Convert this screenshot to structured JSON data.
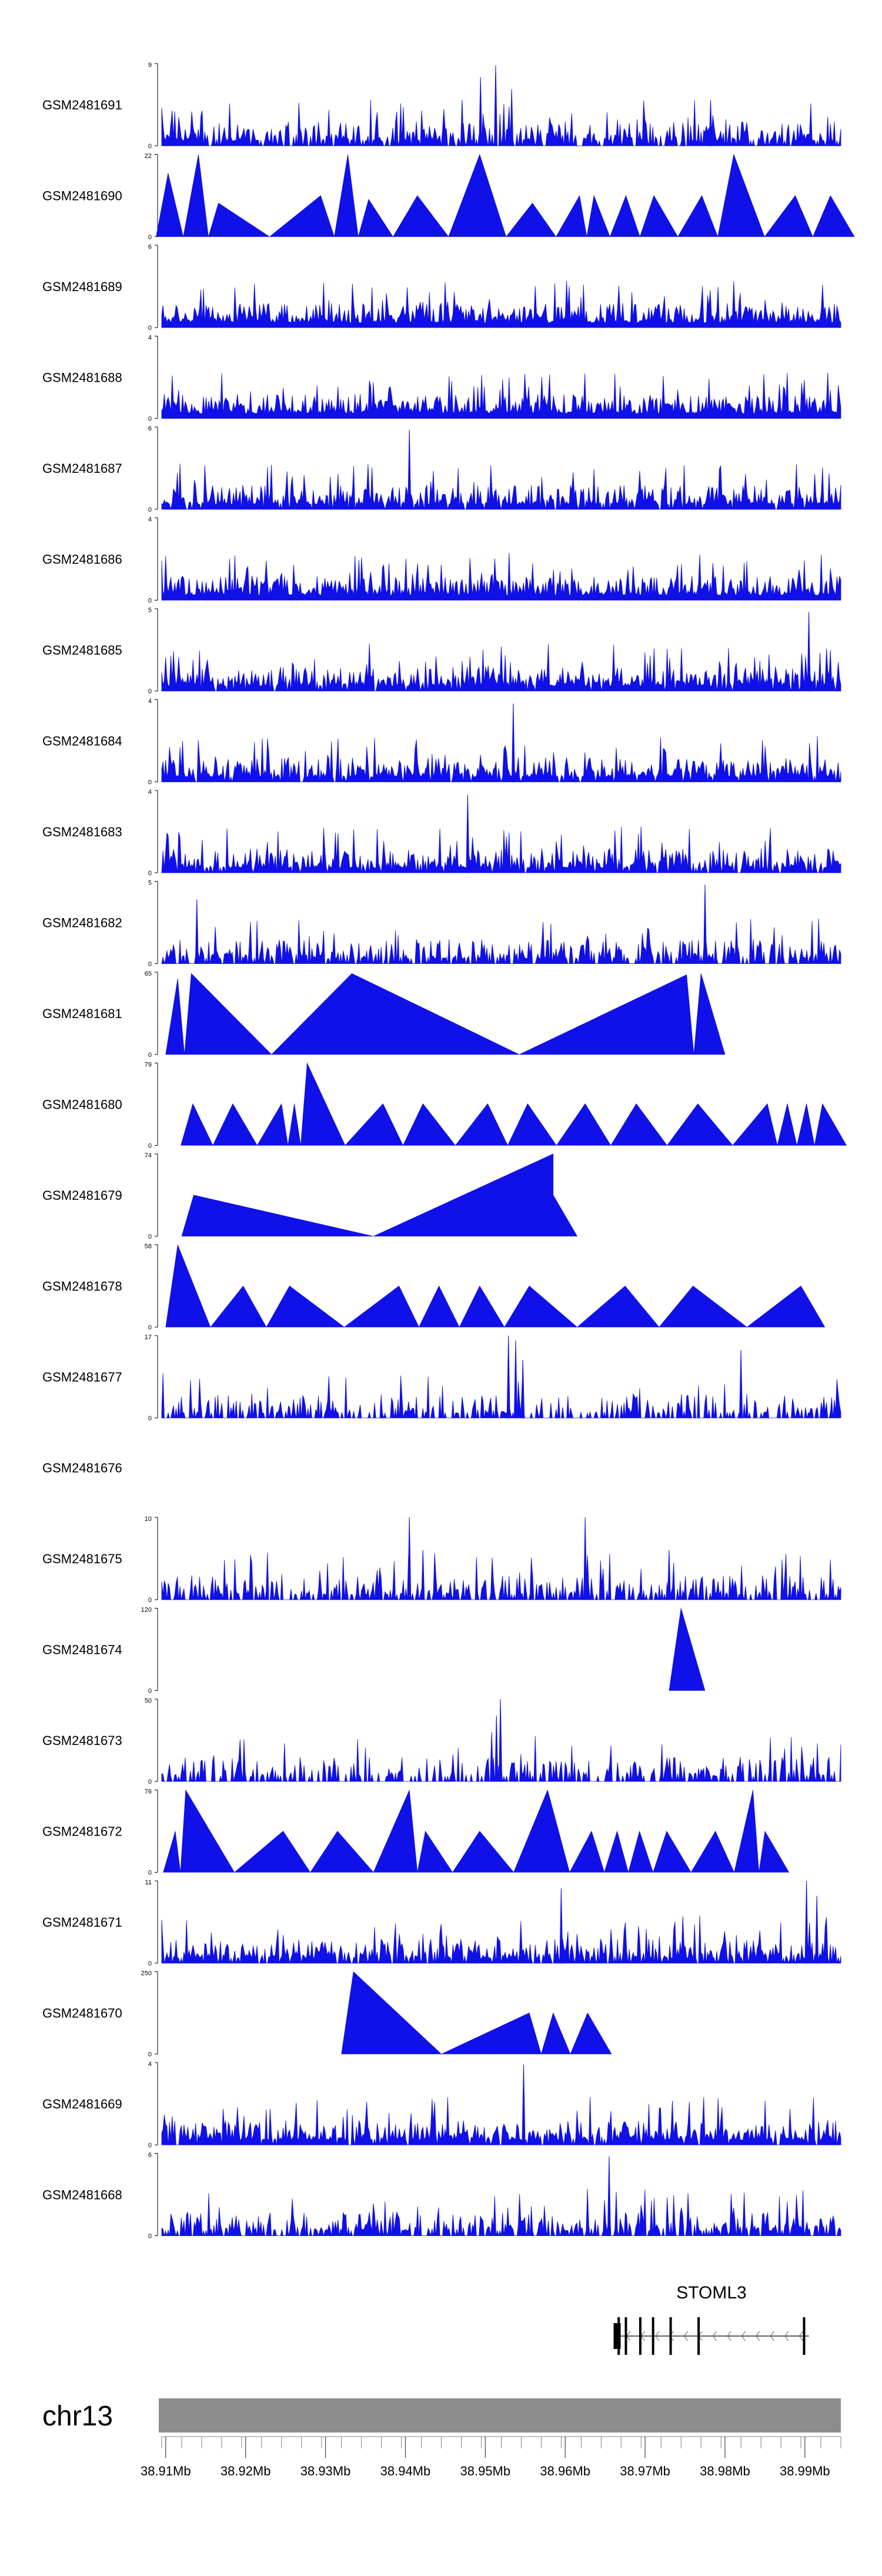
{
  "chart_data": {
    "type": "area",
    "title": "",
    "chromosome": "chr13",
    "x_range_mb": [
      38.9095,
      38.9945
    ],
    "x_ticks": [
      "38.91Mb",
      "38.92Mb",
      "38.93Mb",
      "38.94Mb",
      "38.95Mb",
      "38.96Mb",
      "38.97Mb",
      "38.98Mb",
      "38.99Mb"
    ],
    "x_tick_values": [
      38.91,
      38.92,
      38.93,
      38.94,
      38.95,
      38.96,
      38.97,
      38.98,
      38.99
    ],
    "gene": {
      "name": "STOML3",
      "strand": "-",
      "start_mb": 38.9665,
      "end_mb": 38.9905,
      "exons_mb": [
        38.9667,
        38.9676,
        38.9694,
        38.971,
        38.9732,
        38.9767,
        38.9899
      ]
    },
    "tracks": [
      {
        "sample": "GSM2481691",
        "ymax": 9,
        "ymin": 0,
        "style": "noise",
        "density": 0.8,
        "peaks": [
          [
            38.9494,
            7.5
          ],
          [
            38.9513,
            8.8
          ],
          [
            38.9533,
            6.2
          ],
          [
            38.9471,
            5.0
          ],
          [
            38.9782,
            5.0
          ]
        ]
      },
      {
        "sample": "GSM2481690",
        "ymax": 22,
        "ymin": 0,
        "style": "triangles",
        "peaks": [
          [
            38.9103,
            17
          ],
          [
            38.9141,
            22
          ],
          [
            38.9166,
            9
          ],
          [
            38.9294,
            11
          ],
          [
            38.9328,
            22
          ],
          [
            38.9354,
            10
          ],
          [
            38.9415,
            11
          ],
          [
            38.9493,
            22
          ],
          [
            38.9559,
            9
          ],
          [
            38.9618,
            11
          ],
          [
            38.9636,
            11
          ],
          [
            38.9676,
            11
          ],
          [
            38.9711,
            11
          ],
          [
            38.9771,
            11
          ],
          [
            38.9811,
            22
          ],
          [
            38.9888,
            11
          ],
          [
            38.9932,
            11
          ]
        ]
      },
      {
        "sample": "GSM2481689",
        "ymax": 6,
        "ymin": 0,
        "style": "noise",
        "density": 1.0,
        "peaks": []
      },
      {
        "sample": "GSM2481688",
        "ymax": 4,
        "ymin": 0,
        "style": "noise",
        "density": 1.0,
        "peaks": []
      },
      {
        "sample": "GSM2481687",
        "ymax": 6,
        "ymin": 0,
        "style": "noise",
        "density": 0.9,
        "peaks": [
          [
            38.9405,
            5.8
          ]
        ]
      },
      {
        "sample": "GSM2481686",
        "ymax": 4,
        "ymin": 0,
        "style": "noise",
        "density": 1.0,
        "peaks": []
      },
      {
        "sample": "GSM2481685",
        "ymax": 5,
        "ymin": 0,
        "style": "noise",
        "density": 0.9,
        "peaks": [
          [
            38.9905,
            4.8
          ]
        ]
      },
      {
        "sample": "GSM2481684",
        "ymax": 4,
        "ymin": 0,
        "style": "noise",
        "density": 0.9,
        "peaks": [
          [
            38.9535,
            3.8
          ]
        ]
      },
      {
        "sample": "GSM2481683",
        "ymax": 4,
        "ymin": 0,
        "style": "noise",
        "density": 0.9,
        "peaks": [
          [
            38.9478,
            3.8
          ]
        ]
      },
      {
        "sample": "GSM2481682",
        "ymax": 5,
        "ymin": 0,
        "style": "noise",
        "density": 0.7,
        "peaks": [
          [
            38.9775,
            4.8
          ],
          [
            38.9139,
            3.9
          ]
        ]
      },
      {
        "sample": "GSM2481681",
        "ymax": 65,
        "ymin": 0,
        "style": "triangles",
        "peaks": [
          [
            38.9115,
            60
          ],
          [
            38.9132,
            64
          ],
          [
            38.9333,
            64
          ],
          [
            38.9752,
            63
          ],
          [
            38.977,
            64
          ]
        ]
      },
      {
        "sample": "GSM2481680",
        "ymax": 79,
        "ymin": 0,
        "style": "triangles",
        "peaks": [
          [
            38.9134,
            40
          ],
          [
            38.9184,
            40
          ],
          [
            38.9245,
            40
          ],
          [
            38.9261,
            40
          ],
          [
            38.9277,
            79
          ],
          [
            38.9372,
            40
          ],
          [
            38.9422,
            40
          ],
          [
            38.9503,
            40
          ],
          [
            38.9553,
            40
          ],
          [
            38.9625,
            40
          ],
          [
            38.9689,
            40
          ],
          [
            38.9766,
            40
          ],
          [
            38.9853,
            40
          ],
          [
            38.9878,
            40
          ],
          [
            38.9902,
            40
          ],
          [
            38.9922,
            40
          ]
        ]
      },
      {
        "sample": "GSM2481679",
        "ymax": 74,
        "ymin": 0,
        "style": "triangles",
        "peaks": [
          [
            38.9135,
            37
          ],
          [
            38.9585,
            74
          ],
          [
            38.9585,
            37
          ]
        ]
      },
      {
        "sample": "GSM2481678",
        "ymax": 58,
        "ymin": 0,
        "style": "triangles",
        "peaks": [
          [
            38.9115,
            58
          ],
          [
            38.9197,
            29
          ],
          [
            38.9255,
            29
          ],
          [
            38.9392,
            29
          ],
          [
            38.9442,
            29
          ],
          [
            38.9493,
            29
          ],
          [
            38.9555,
            29
          ],
          [
            38.9675,
            29
          ],
          [
            38.976,
            29
          ],
          [
            38.9895,
            29
          ]
        ]
      },
      {
        "sample": "GSM2481677",
        "ymax": 17,
        "ymin": 0,
        "style": "noise",
        "density": 0.5,
        "peaks": [
          [
            38.9529,
            17
          ],
          [
            38.9538,
            16
          ],
          [
            38.9547,
            12
          ],
          [
            38.982,
            14
          ]
        ]
      },
      {
        "sample": "GSM2481676",
        "ymax": null,
        "ymin": null,
        "style": "empty",
        "peaks": []
      },
      {
        "sample": "GSM2481675",
        "ymax": 10,
        "ymin": 0,
        "style": "noise",
        "density": 0.6,
        "peaks": [
          [
            38.9405,
            10
          ],
          [
            38.9422,
            6
          ],
          [
            38.9625,
            10
          ],
          [
            38.973,
            6
          ]
        ]
      },
      {
        "sample": "GSM2481674",
        "ymax": 120,
        "ymin": 0,
        "style": "triangles",
        "peaks": [
          [
            38.9745,
            120
          ]
        ]
      },
      {
        "sample": "GSM2481673",
        "ymax": 50,
        "ymin": 0,
        "style": "noise",
        "density": 0.5,
        "peaks": [
          [
            38.9519,
            50
          ],
          [
            38.9514,
            40
          ],
          [
            38.9508,
            30
          ],
          [
            38.9135,
            12
          ]
        ]
      },
      {
        "sample": "GSM2481672",
        "ymax": 76,
        "ymin": 0,
        "style": "triangles",
        "peaks": [
          [
            38.9112,
            38
          ],
          [
            38.9125,
            76
          ],
          [
            38.9247,
            38
          ],
          [
            38.9315,
            38
          ],
          [
            38.9405,
            76
          ],
          [
            38.9425,
            38
          ],
          [
            38.9493,
            38
          ],
          [
            38.9578,
            76
          ],
          [
            38.9633,
            38
          ],
          [
            38.9665,
            38
          ],
          [
            38.9693,
            38
          ],
          [
            38.9727,
            38
          ],
          [
            38.9788,
            38
          ],
          [
            38.9835,
            76
          ],
          [
            38.985,
            38
          ]
        ]
      },
      {
        "sample": "GSM2481671",
        "ymax": 11,
        "ymin": 0,
        "style": "noise",
        "density": 0.8,
        "peaks": [
          [
            38.9902,
            11
          ],
          [
            38.9915,
            9
          ],
          [
            38.9595,
            10
          ]
        ]
      },
      {
        "sample": "GSM2481670",
        "ymax": 250,
        "ymin": 0,
        "style": "triangles",
        "peaks": [
          [
            38.9335,
            250
          ],
          [
            38.9555,
            125
          ],
          [
            38.9585,
            125
          ],
          [
            38.9628,
            125
          ]
        ]
      },
      {
        "sample": "GSM2481669",
        "ymax": 4,
        "ymin": 0,
        "style": "noise",
        "density": 0.9,
        "peaks": [
          [
            38.9548,
            3.9
          ]
        ]
      },
      {
        "sample": "GSM2481668",
        "ymax": 6,
        "ymin": 0,
        "style": "noise",
        "density": 0.7,
        "peaks": [
          [
            38.9655,
            5.8
          ]
        ]
      }
    ]
  },
  "colors": {
    "signal": "#1010e8",
    "axis": "#000000",
    "ideogram": "#8c8c8c",
    "ruler": "#808080"
  }
}
